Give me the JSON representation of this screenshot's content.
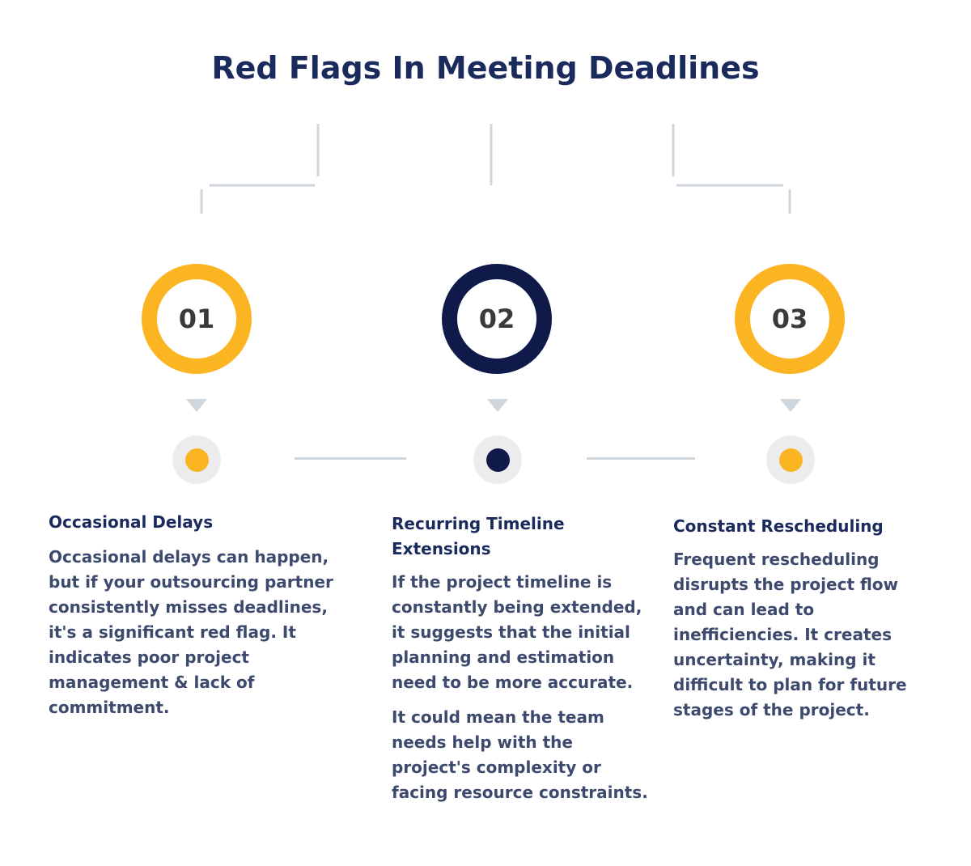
{
  "title": "Red Flags In Meeting Deadlines",
  "colors": {
    "title": "#1b2a5c",
    "accent_yellow": "#fbb422",
    "accent_navy": "#0f1a4a",
    "connector_gray": "#cfd6dc",
    "dot_bg": "#ececee",
    "body_text": "#3d4a6e"
  },
  "steps": [
    {
      "number": "01",
      "color": "#fbb422",
      "heading": "Occasional Delays",
      "paragraphs": [
        "Occasional delays can happen, but if your outsourcing partner consistently misses deadlines, it's a significant red flag. It indicates poor project management & lack of commitment."
      ]
    },
    {
      "number": "02",
      "color": "#0f1a4a",
      "heading": "Recurring Timeline Extensions",
      "paragraphs": [
        "If the project timeline is constantly being extended, it suggests that the initial planning and estimation need to be more accurate.",
        "It could mean the team needs help with the project's complexity or facing resource constraints."
      ]
    },
    {
      "number": "03",
      "color": "#fbb422",
      "heading": "Constant Rescheduling",
      "paragraphs": [
        "Frequent rescheduling disrupts the project flow and can lead to inefficiencies. It creates uncertainty, making it difficult to plan for future stages of the project."
      ]
    }
  ]
}
